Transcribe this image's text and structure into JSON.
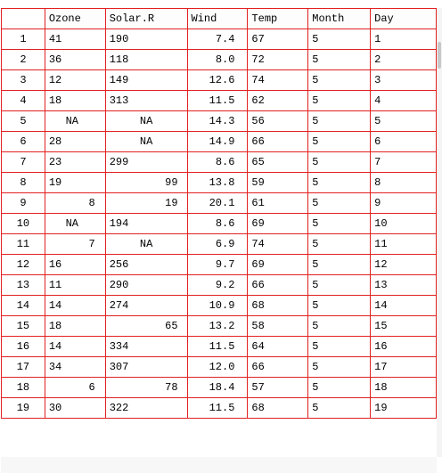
{
  "columns": [
    "Ozone",
    "Solar.R",
    "Wind",
    "Temp",
    "Month",
    "Day"
  ],
  "rows": [
    {
      "row": "1",
      "cells": [
        "41",
        "190",
        "7.4",
        "67",
        "5",
        "1"
      ]
    },
    {
      "row": "2",
      "cells": [
        "36",
        "118",
        "8.0",
        "72",
        "5",
        "2"
      ]
    },
    {
      "row": "3",
      "cells": [
        "12",
        "149",
        "12.6",
        "74",
        "5",
        "3"
      ]
    },
    {
      "row": "4",
      "cells": [
        "18",
        "313",
        "11.5",
        "62",
        "5",
        "4"
      ]
    },
    {
      "row": "5",
      "cells": [
        "NA",
        "NA",
        "14.3",
        "56",
        "5",
        "5"
      ]
    },
    {
      "row": "6",
      "cells": [
        "28",
        "NA",
        "14.9",
        "66",
        "5",
        "6"
      ]
    },
    {
      "row": "7",
      "cells": [
        "23",
        "299",
        "8.6",
        "65",
        "5",
        "7"
      ]
    },
    {
      "row": "8",
      "cells": [
        "19",
        "99",
        "13.8",
        "59",
        "5",
        "8"
      ]
    },
    {
      "row": "9",
      "cells": [
        "8",
        "19",
        "20.1",
        "61",
        "5",
        "9"
      ]
    },
    {
      "row": "10",
      "cells": [
        "NA",
        "194",
        "8.6",
        "69",
        "5",
        "10"
      ]
    },
    {
      "row": "11",
      "cells": [
        "7",
        "NA",
        "6.9",
        "74",
        "5",
        "11"
      ]
    },
    {
      "row": "12",
      "cells": [
        "16",
        "256",
        "9.7",
        "69",
        "5",
        "12"
      ]
    },
    {
      "row": "13",
      "cells": [
        "11",
        "290",
        "9.2",
        "66",
        "5",
        "13"
      ]
    },
    {
      "row": "14",
      "cells": [
        "14",
        "274",
        "10.9",
        "68",
        "5",
        "14"
      ]
    },
    {
      "row": "15",
      "cells": [
        "18",
        "65",
        "13.2",
        "58",
        "5",
        "15"
      ]
    },
    {
      "row": "16",
      "cells": [
        "14",
        "334",
        "11.5",
        "64",
        "5",
        "16"
      ]
    },
    {
      "row": "17",
      "cells": [
        "34",
        "307",
        "12.0",
        "66",
        "5",
        "17"
      ]
    },
    {
      "row": "18",
      "cells": [
        "6",
        "78",
        "18.4",
        "57",
        "5",
        "18"
      ]
    },
    {
      "row": "19",
      "cells": [
        "30",
        "322",
        "11.5",
        "68",
        "5",
        "19"
      ]
    }
  ],
  "colors": {
    "grid_border": "#e22020"
  }
}
